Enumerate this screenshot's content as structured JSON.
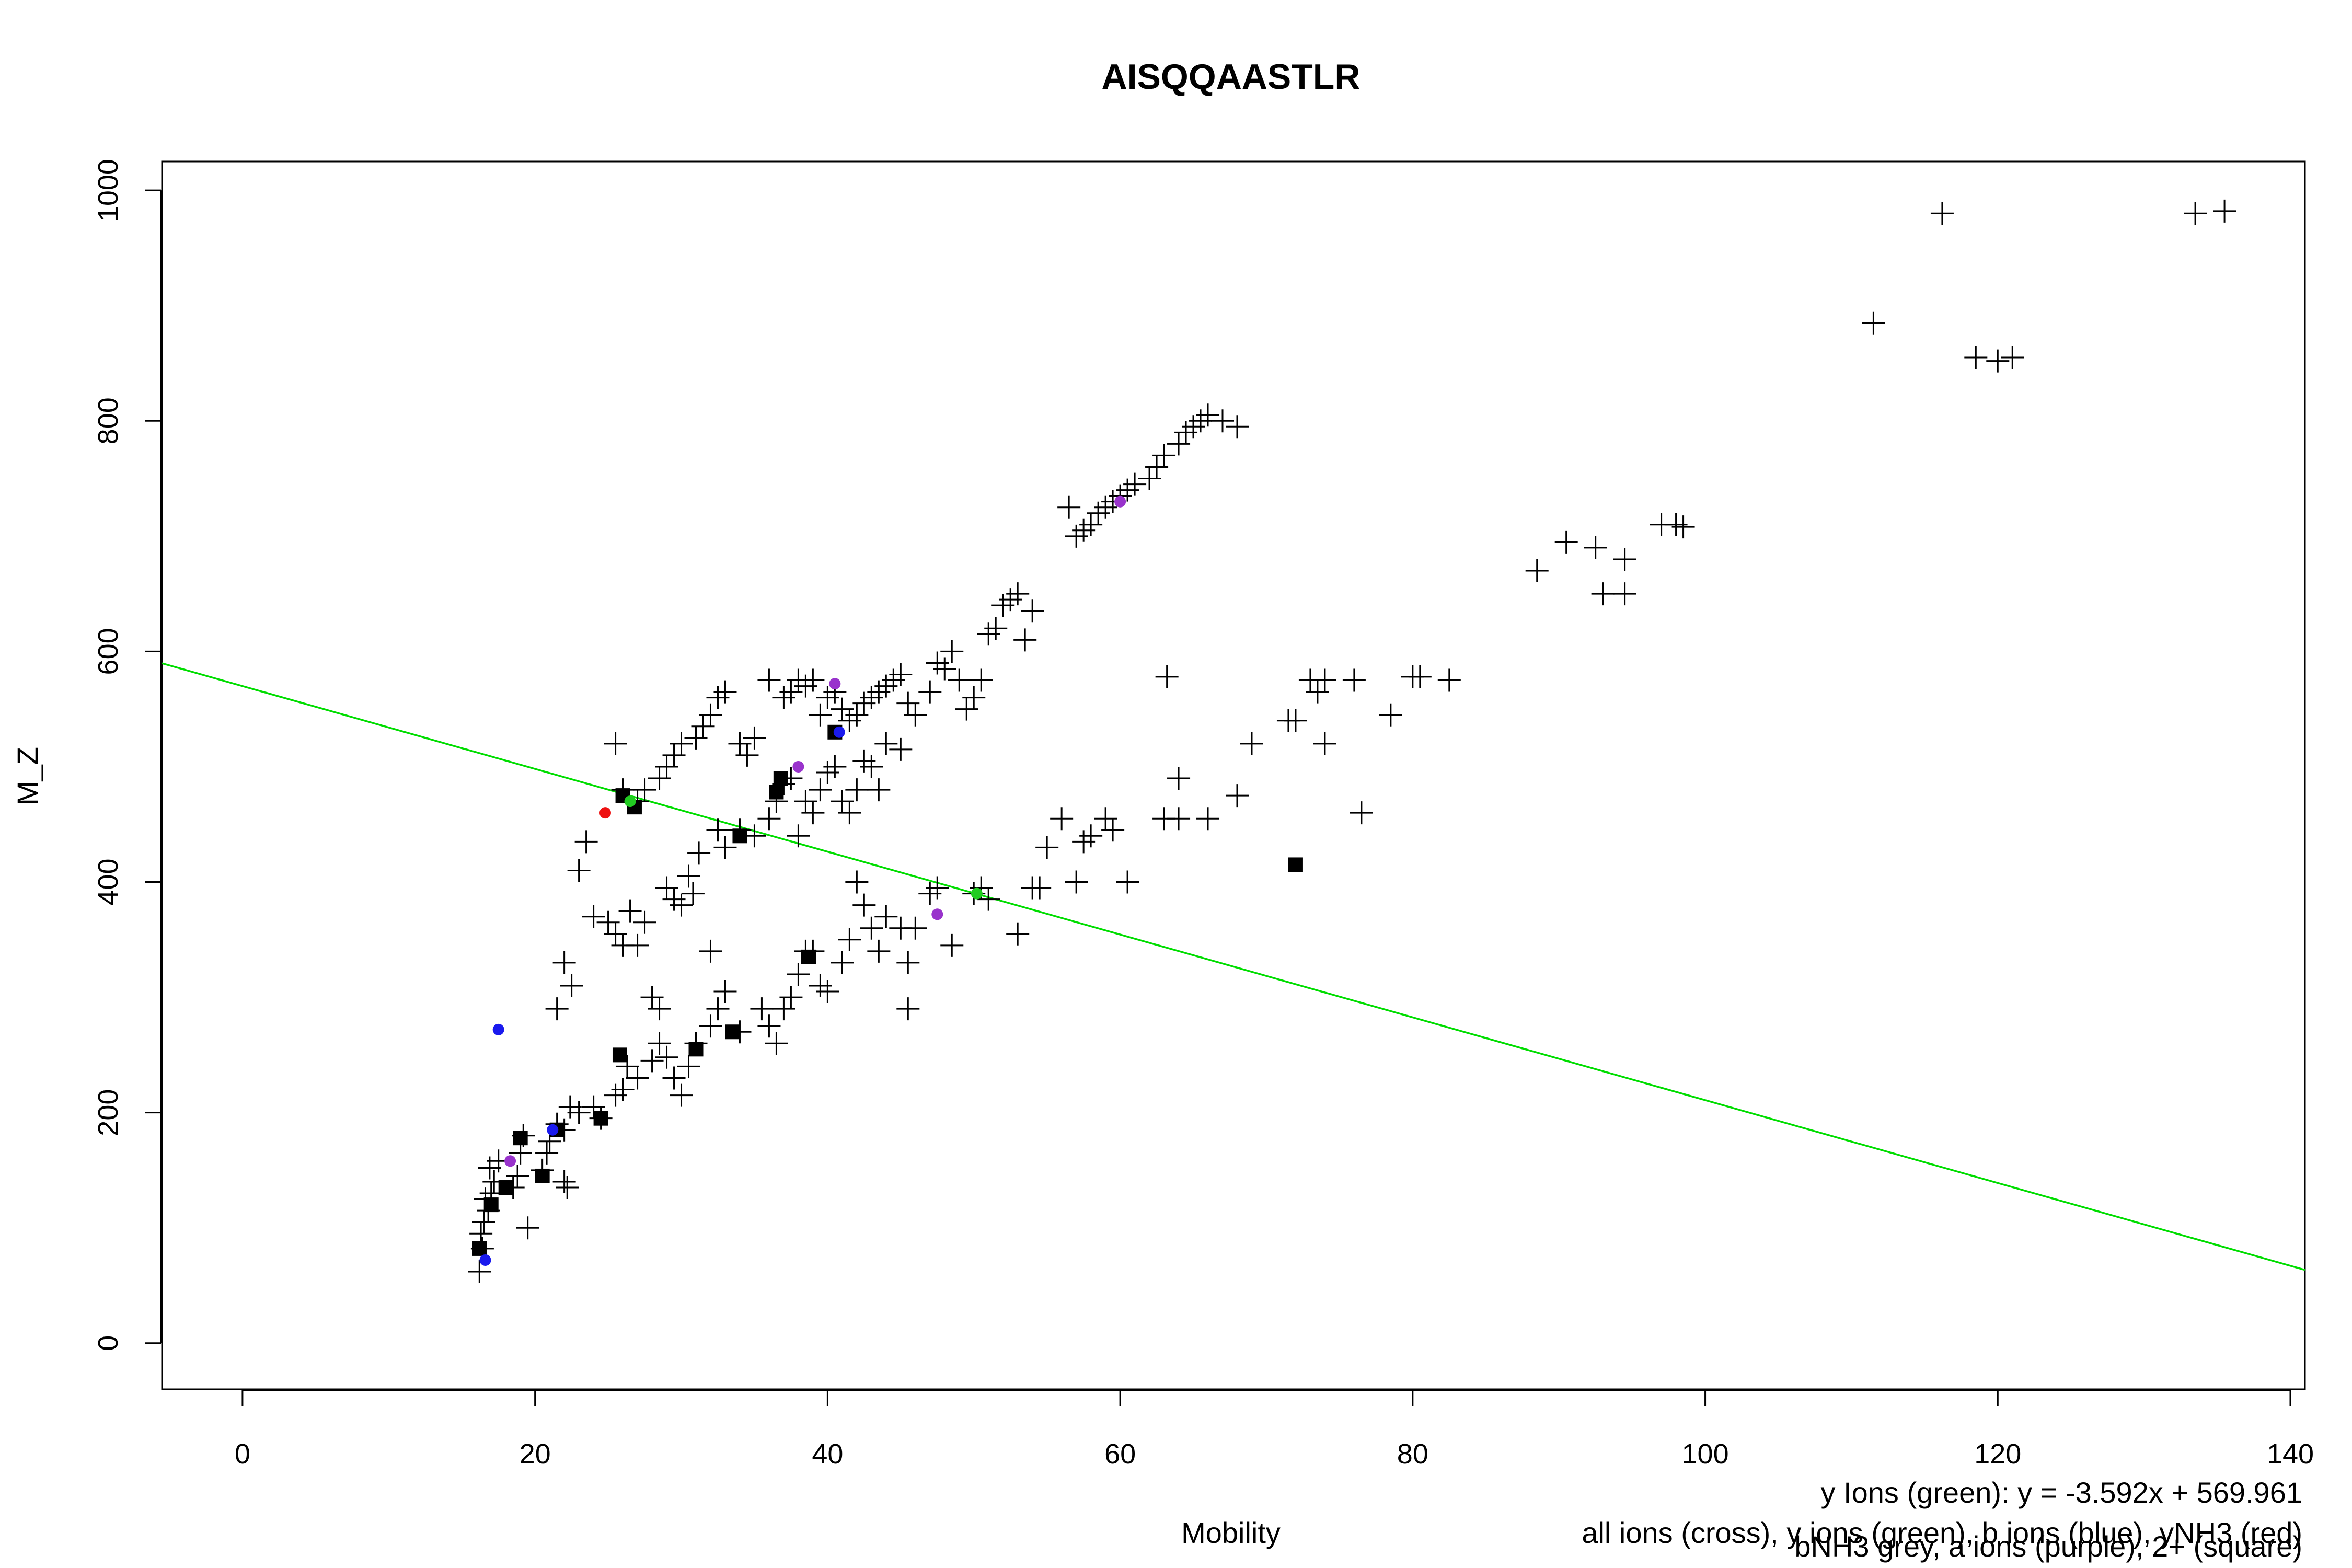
{
  "chart_data": {
    "type": "scatter",
    "title": "AISQQAASTLR",
    "xlabel": "Mobility",
    "ylabel": "M_Z",
    "xlim": [
      -5.5,
      141
    ],
    "ylim": [
      -40,
      1025
    ],
    "x_ticks": [
      0,
      20,
      40,
      60,
      80,
      100,
      120,
      140
    ],
    "y_ticks": [
      0,
      200,
      400,
      600,
      800,
      1000
    ],
    "grid": false,
    "fit_line": {
      "label": "y Ions (green)",
      "equation": "y = -3.592x + 569.961",
      "slope": -3.592,
      "intercept": 569.961,
      "color": "#00dd00"
    },
    "legend_lines": [
      "all ions (cross), y ions (green), b ions (blue), yNH3 (red)",
      "bNH3 grey, a ions (purple), 2+ (square)"
    ],
    "series": [
      {
        "name": "all ions (cross)",
        "marker": "cross",
        "color": "#000000",
        "points": [
          [
            16.2,
            62
          ],
          [
            16.4,
            82
          ],
          [
            16.3,
            95
          ],
          [
            16.5,
            105
          ],
          [
            16.8,
            115
          ],
          [
            16.6,
            125
          ],
          [
            17,
            130
          ],
          [
            17.2,
            140
          ],
          [
            16.9,
            152
          ],
          [
            17.5,
            158
          ],
          [
            18.5,
            135
          ],
          [
            19.5,
            100
          ],
          [
            18.8,
            145
          ],
          [
            19,
            165
          ],
          [
            19.2,
            180
          ],
          [
            20.5,
            150
          ],
          [
            20.8,
            165
          ],
          [
            21,
            175
          ],
          [
            21.5,
            190
          ],
          [
            22,
            185
          ],
          [
            22.4,
            205
          ],
          [
            22,
            140
          ],
          [
            22.2,
            135
          ],
          [
            23,
            200
          ],
          [
            24,
            205
          ],
          [
            24.5,
            195
          ],
          [
            25.5,
            215
          ],
          [
            26,
            220
          ],
          [
            26.3,
            240
          ],
          [
            27,
            230
          ],
          [
            28,
            245
          ],
          [
            28.5,
            260
          ],
          [
            29,
            248
          ],
          [
            29.5,
            230
          ],
          [
            30,
            215
          ],
          [
            30.5,
            240
          ],
          [
            31,
            260
          ],
          [
            32,
            275
          ],
          [
            32.5,
            290
          ],
          [
            33,
            305
          ],
          [
            34,
            270
          ],
          [
            35.5,
            290
          ],
          [
            36,
            275
          ],
          [
            36.5,
            260
          ],
          [
            37,
            290
          ],
          [
            37.5,
            300
          ],
          [
            38,
            320
          ],
          [
            38.5,
            340
          ],
          [
            39,
            340
          ],
          [
            39.5,
            310
          ],
          [
            40,
            305
          ],
          [
            41,
            330
          ],
          [
            41.5,
            350
          ],
          [
            42,
            400
          ],
          [
            42.5,
            380
          ],
          [
            43,
            360
          ],
          [
            43.5,
            340
          ],
          [
            44,
            370
          ],
          [
            45,
            360
          ],
          [
            45.5,
            330
          ],
          [
            45.5,
            290
          ],
          [
            46,
            360
          ],
          [
            47,
            390
          ],
          [
            47.5,
            395
          ],
          [
            48.5,
            345
          ],
          [
            50,
            390
          ],
          [
            50.5,
            395
          ],
          [
            51,
            385
          ],
          [
            53,
            355
          ],
          [
            54,
            395
          ],
          [
            54.5,
            395
          ],
          [
            55,
            430
          ],
          [
            56,
            455
          ],
          [
            57,
            400
          ],
          [
            57.5,
            435
          ],
          [
            58,
            440
          ],
          [
            59,
            455
          ],
          [
            59.5,
            445
          ],
          [
            60.5,
            400
          ],
          [
            63,
            455
          ],
          [
            64,
            455
          ],
          [
            64,
            490
          ],
          [
            66,
            455
          ],
          [
            68,
            475
          ],
          [
            69,
            520
          ],
          [
            71.5,
            540
          ],
          [
            72,
            540
          ],
          [
            73,
            575
          ],
          [
            73.5,
            565
          ],
          [
            74,
            575
          ],
          [
            74,
            520
          ],
          [
            76,
            575
          ],
          [
            76.5,
            460
          ],
          [
            78.5,
            545
          ],
          [
            80,
            578
          ],
          [
            80.5,
            578
          ],
          [
            82.5,
            575
          ],
          [
            63.2,
            578
          ],
          [
            21.5,
            290
          ],
          [
            22,
            330
          ],
          [
            22.5,
            310
          ],
          [
            23,
            410
          ],
          [
            23.5,
            435
          ],
          [
            24,
            370
          ],
          [
            25,
            365
          ],
          [
            25.5,
            355
          ],
          [
            26,
            345
          ],
          [
            26.5,
            375
          ],
          [
            27,
            345
          ],
          [
            27.5,
            365
          ],
          [
            28,
            300
          ],
          [
            28.5,
            290
          ],
          [
            29,
            395
          ],
          [
            29.5,
            385
          ],
          [
            30,
            380
          ],
          [
            30.5,
            405
          ],
          [
            30.8,
            390
          ],
          [
            31.2,
            425
          ],
          [
            32,
            340
          ],
          [
            32.5,
            445
          ],
          [
            33,
            430
          ],
          [
            34,
            445
          ],
          [
            35,
            440
          ],
          [
            36,
            455
          ],
          [
            36.5,
            470
          ],
          [
            37,
            485
          ],
          [
            37.5,
            490
          ],
          [
            38,
            440
          ],
          [
            38.5,
            470
          ],
          [
            39,
            460
          ],
          [
            39.5,
            480
          ],
          [
            40,
            495
          ],
          [
            40.5,
            500
          ],
          [
            41,
            470
          ],
          [
            41.5,
            460
          ],
          [
            42,
            480
          ],
          [
            42.5,
            505
          ],
          [
            43,
            500
          ],
          [
            43.5,
            480
          ],
          [
            44,
            520
          ],
          [
            45,
            515
          ],
          [
            25.5,
            520
          ],
          [
            26,
            480
          ],
          [
            27,
            470
          ],
          [
            27.5,
            480
          ],
          [
            28.5,
            490
          ],
          [
            29,
            500
          ],
          [
            29.5,
            510
          ],
          [
            30,
            520
          ],
          [
            31,
            525
          ],
          [
            31.5,
            535
          ],
          [
            32,
            545
          ],
          [
            32.5,
            560
          ],
          [
            33,
            565
          ],
          [
            34,
            520
          ],
          [
            34.5,
            510
          ],
          [
            35,
            525
          ],
          [
            36,
            575
          ],
          [
            37,
            560
          ],
          [
            37.5,
            565
          ],
          [
            38,
            575
          ],
          [
            38.5,
            570
          ],
          [
            39,
            575
          ],
          [
            39.5,
            545
          ],
          [
            40,
            560
          ],
          [
            40.5,
            565
          ],
          [
            41,
            550
          ],
          [
            41.5,
            540
          ],
          [
            42,
            545
          ],
          [
            42.5,
            555
          ],
          [
            43,
            560
          ],
          [
            43.5,
            565
          ],
          [
            44,
            570
          ],
          [
            44.5,
            575
          ],
          [
            45,
            580
          ],
          [
            45.5,
            555
          ],
          [
            46,
            545
          ],
          [
            47,
            565
          ],
          [
            47.5,
            590
          ],
          [
            48,
            585
          ],
          [
            48.5,
            600
          ],
          [
            49,
            575
          ],
          [
            49.5,
            550
          ],
          [
            50,
            560
          ],
          [
            50.5,
            575
          ],
          [
            51,
            615
          ],
          [
            51.5,
            620
          ],
          [
            52,
            640
          ],
          [
            52.5,
            645
          ],
          [
            53,
            650
          ],
          [
            53.5,
            610
          ],
          [
            54,
            635
          ],
          [
            56.5,
            725
          ],
          [
            57,
            700
          ],
          [
            57.5,
            705
          ],
          [
            58,
            710
          ],
          [
            58.5,
            720
          ],
          [
            59,
            725
          ],
          [
            59.5,
            730
          ],
          [
            60,
            735
          ],
          [
            60.5,
            740
          ],
          [
            61,
            745
          ],
          [
            62,
            750
          ],
          [
            62.5,
            760
          ],
          [
            63,
            770
          ],
          [
            64,
            780
          ],
          [
            64.5,
            790
          ],
          [
            65,
            795
          ],
          [
            65.5,
            800
          ],
          [
            66,
            805
          ],
          [
            67,
            800
          ],
          [
            68,
            795
          ],
          [
            88.5,
            670
          ],
          [
            90.5,
            695
          ],
          [
            92.5,
            690
          ],
          [
            93,
            650
          ],
          [
            94.5,
            680
          ],
          [
            94.5,
            650
          ],
          [
            97,
            710
          ],
          [
            98,
            710
          ],
          [
            98.5,
            708
          ],
          [
            111.5,
            885
          ],
          [
            116.2,
            980
          ],
          [
            118.5,
            855
          ],
          [
            120,
            852
          ],
          [
            121,
            855
          ],
          [
            133.5,
            980
          ],
          [
            135.5,
            982
          ]
        ]
      },
      {
        "name": "2+ (square)",
        "marker": "square",
        "color": "#000000",
        "points": [
          [
            16.2,
            82
          ],
          [
            17,
            120
          ],
          [
            18,
            135
          ],
          [
            19,
            178
          ],
          [
            20.5,
            145
          ],
          [
            21.5,
            185
          ],
          [
            24.5,
            195
          ],
          [
            25.8,
            250
          ],
          [
            26,
            475
          ],
          [
            26.8,
            465
          ],
          [
            31,
            255
          ],
          [
            33.5,
            270
          ],
          [
            34,
            440
          ],
          [
            36.5,
            478
          ],
          [
            36.8,
            490
          ],
          [
            38.7,
            335
          ],
          [
            40.5,
            530
          ],
          [
            72,
            415
          ]
        ]
      },
      {
        "name": "y ions (green)",
        "marker": "dot",
        "color": "#22cc22",
        "points": [
          [
            50.2,
            390
          ],
          [
            26.5,
            470
          ]
        ]
      },
      {
        "name": "b ions (blue)",
        "marker": "dot",
        "color": "#1a1aee",
        "points": [
          [
            17.5,
            272
          ],
          [
            16.6,
            72
          ],
          [
            21.2,
            185
          ],
          [
            40.8,
            530
          ]
        ]
      },
      {
        "name": "yNH3 (red)",
        "marker": "dot",
        "color": "#ee1111",
        "points": [
          [
            24.8,
            460
          ]
        ]
      },
      {
        "name": "a ions (purple)",
        "marker": "dot",
        "color": "#9933cc",
        "points": [
          [
            18.3,
            158
          ],
          [
            38,
            500
          ],
          [
            40.5,
            572
          ],
          [
            47.5,
            372
          ],
          [
            60,
            730
          ]
        ]
      }
    ]
  }
}
